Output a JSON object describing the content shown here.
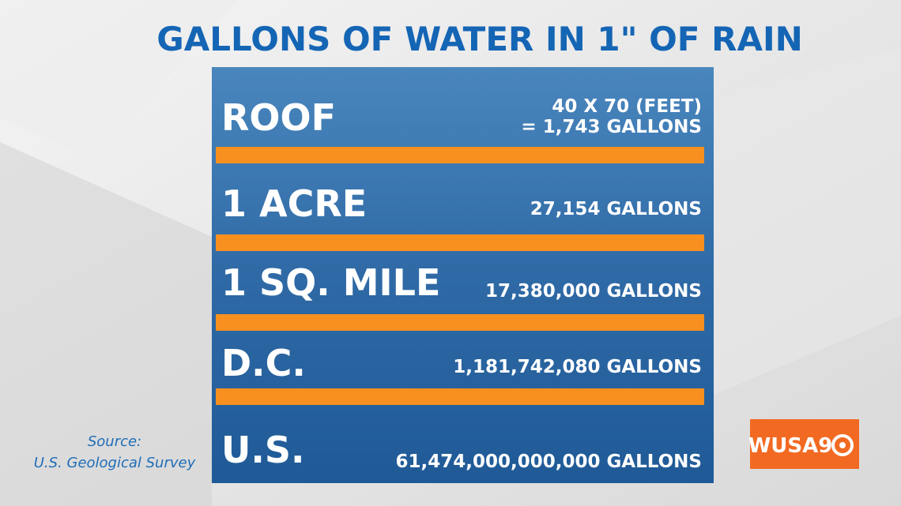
{
  "header": {
    "title": "GALLONS OF WATER IN 1\" OF RAIN"
  },
  "rows": [
    {
      "label": "ROOF",
      "value": [
        "40 X 70 (FEET)",
        "= 1,743 GALLONS"
      ]
    },
    {
      "label": "1 ACRE",
      "value": [
        "27,154 GALLONS"
      ]
    },
    {
      "label": "1 SQ. MILE",
      "value": [
        "17,380,000 GALLONS"
      ]
    },
    {
      "label": "D.C.",
      "value": [
        "1,181,742,080 GALLONS"
      ]
    },
    {
      "label": "U.S.",
      "value": [
        "61,474,000,000,000 GALLONS"
      ]
    }
  ],
  "source": [
    "Source:",
    "U.S. Geological Survey"
  ],
  "logo": "WUSA9"
}
